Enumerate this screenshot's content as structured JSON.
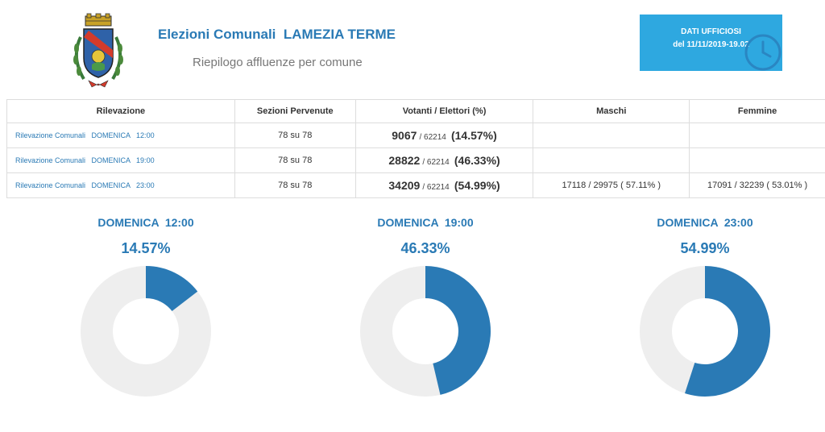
{
  "header": {
    "title": "Elezioni Comunali  LAMEZIA TERME",
    "subtitle": "Riepilogo affluenze per comune",
    "status_line1": "DATI UFFICIOSI",
    "status_line2": "del 11/11/2019-19.02",
    "crest_icon": "coat-of-arms-icon",
    "clock_icon": "clock-icon"
  },
  "table": {
    "headers": [
      "Rilevazione",
      "Sezioni Pervenute",
      "Votanti / Elettori (%)",
      "Maschi",
      "Femmine"
    ],
    "rows": [
      {
        "rilevazione": "Rilevazione Comunali   DOMENICA   12:00",
        "sezioni": "78 su 78",
        "votanti": "9067",
        "elettori": "/ 62214",
        "percent": "(14.57%)",
        "maschi": "",
        "femmine": ""
      },
      {
        "rilevazione": "Rilevazione Comunali   DOMENICA   19:00",
        "sezioni": "78 su 78",
        "votanti": "28822",
        "elettori": "/ 62214",
        "percent": "(46.33%)",
        "maschi": "",
        "femmine": ""
      },
      {
        "rilevazione": "Rilevazione Comunali   DOMENICA   23:00",
        "sezioni": "78 su 78",
        "votanti": "34209",
        "elettori": "/ 62214",
        "percent": "(54.99%)",
        "maschi": "17118 / 29975 ( 57.11% )",
        "femmine": "17091 / 32239 ( 53.01% )"
      }
    ]
  },
  "donuts": [
    {
      "label": "DOMENICA  12:00",
      "percent_text": "14.57%",
      "value": 14.57
    },
    {
      "label": "DOMENICA  19:00",
      "percent_text": "46.33%",
      "value": 46.33
    },
    {
      "label": "DOMENICA  23:00",
      "percent_text": "54.99%",
      "value": 54.99
    }
  ],
  "colors": {
    "accent": "#2a7ab5",
    "status_bg": "#2ea8e0",
    "donut_fill": "#2a7ab5",
    "donut_track": "#eeeeee"
  }
}
